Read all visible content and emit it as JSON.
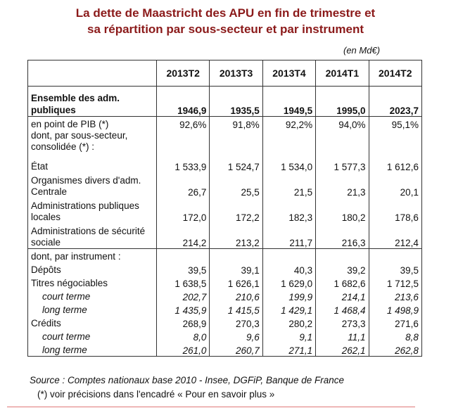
{
  "title_line1": "La dette de Maastricht des APU en fin de trimestre et",
  "title_line2": "sa répartition par sous-secteur et par instrument",
  "unit": "(en Md€)",
  "columns": [
    "2013T2",
    "2013T3",
    "2013T4",
    "2014T1",
    "2014T2"
  ],
  "rows": [
    {
      "label": "Ensemble des adm. publiques",
      "values": [
        "1946,9",
        "1935,5",
        "1949,5",
        "1995,0",
        "2023,7"
      ]
    },
    {
      "label": "en point de PIB (*)",
      "values": [
        "92,6%",
        "91,8%",
        "92,2%",
        "94,0%",
        "95,1%"
      ]
    },
    {
      "label": "dont, par sous-secteur, consolidée (*) :",
      "values": [
        "",
        "",
        "",
        "",
        ""
      ]
    },
    {
      "label": "État",
      "values": [
        "1 533,9",
        "1 524,7",
        "1 534,0",
        "1 577,3",
        "1 612,6"
      ]
    },
    {
      "label": "Organismes divers d'adm. Centrale",
      "values": [
        "26,7",
        "25,5",
        "21,5",
        "21,3",
        "20,1"
      ]
    },
    {
      "label": "Administrations publiques locales",
      "values": [
        "172,0",
        "172,2",
        "182,3",
        "180,2",
        "178,6"
      ]
    },
    {
      "label": "Administrations de sécurité sociale",
      "values": [
        "214,2",
        "213,2",
        "211,7",
        "216,3",
        "212,4"
      ]
    },
    {
      "label": "dont, par  instrument :",
      "values": [
        "",
        "",
        "",
        "",
        ""
      ]
    },
    {
      "label": "Dépôts",
      "values": [
        "39,5",
        "39,1",
        "40,3",
        "39,2",
        "39,5"
      ]
    },
    {
      "label": "Titres négociables",
      "values": [
        "1 638,5",
        "1 626,1",
        "1 629,0",
        "1 682,6",
        "1 712,5"
      ]
    },
    {
      "label": "court terme",
      "values": [
        "202,7",
        "210,6",
        "199,9",
        "214,1",
        "213,6"
      ]
    },
    {
      "label": "long terme",
      "values": [
        "1 435,9",
        "1 415,5",
        "1 429,1",
        "1 468,4",
        "1 498,9"
      ]
    },
    {
      "label": "Crédits",
      "values": [
        "268,9",
        "270,3",
        "280,2",
        "273,3",
        "271,6"
      ]
    },
    {
      "label": "court terme",
      "values": [
        "8,0",
        "9,6",
        "9,1",
        "11,1",
        "8,8"
      ]
    },
    {
      "label": "long terme",
      "values": [
        "261,0",
        "260,7",
        "271,1",
        "262,1",
        "262,8"
      ]
    }
  ],
  "source": "Source : Comptes nationaux base 2010 - Insee, DGFiP, Banque de France",
  "note": "(*) voir précisions dans l'encadré « Pour en savoir plus »"
}
